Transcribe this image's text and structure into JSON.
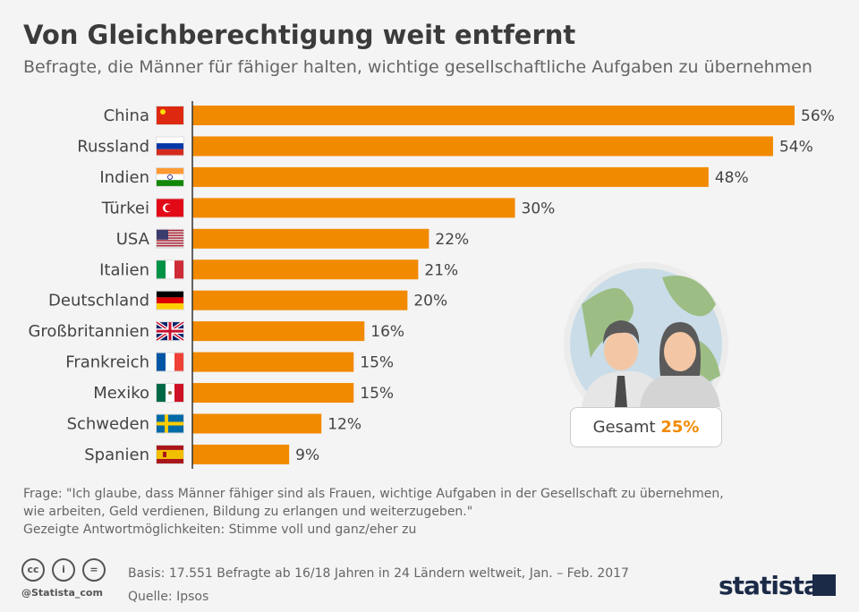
{
  "title": "Von Gleichberechtigung weit entfernt",
  "subtitle": "Befragte, die Männer für fähiger halten, wichtige gesellschaftliche Aufgaben zu übernehmen",
  "chart_data": {
    "type": "bar",
    "orientation": "horizontal",
    "categories": [
      "China",
      "Russland",
      "Indien",
      "Türkei",
      "USA",
      "Italien",
      "Deutschland",
      "Großbritannien",
      "Frankreich",
      "Mexiko",
      "Schweden",
      "Spanien"
    ],
    "values": [
      56,
      54,
      48,
      30,
      22,
      21,
      20,
      16,
      15,
      15,
      12,
      9
    ],
    "value_labels": [
      "56%",
      "54%",
      "48%",
      "30%",
      "22%",
      "21%",
      "20%",
      "16%",
      "15%",
      "15%",
      "12%",
      "9%"
    ],
    "bar_color": "#f28a00",
    "xlim": [
      0,
      56
    ],
    "grid": false
  },
  "flags": [
    "cn",
    "ru",
    "in",
    "tr",
    "us",
    "it",
    "de",
    "gb",
    "fr",
    "mx",
    "se",
    "es"
  ],
  "total": {
    "label": "Gesamt",
    "value": "25%"
  },
  "note": [
    "Frage: \"Ich glaube, dass Männer fähiger sind als Frauen, wichtige Aufgaben in der Gesellschaft zu übernehmen,",
    "wie arbeiten, Geld verdienen, Bildung zu erlangen und weiterzugeben.\"",
    "Gezeigte Antwortmöglichkeiten: Stimme voll und ganz/eher zu"
  ],
  "basis": "Basis: 17.551 Befragte ab 16/18 Jahren in 24 Ländern weltweit, Jan. – Feb. 2017",
  "source": "Quelle: Ipsos",
  "handle": "@Statista_com",
  "license_icons": [
    "cc",
    "by",
    "nd"
  ],
  "logo": "statista"
}
